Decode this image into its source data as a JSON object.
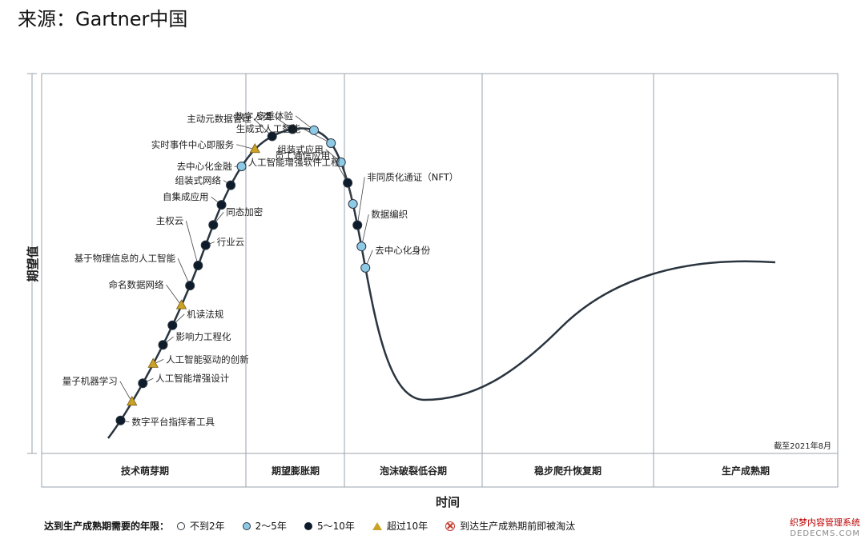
{
  "source": "来源：Gartner中国",
  "chart_data": {
    "type": "line",
    "title": "",
    "xlabel": "时间",
    "ylabel": "期望值",
    "date_note": "截至2021年8月",
    "phases": [
      "技术萌芽期",
      "期望膨胀期",
      "泡沫破裂低谷期",
      "稳步爬升恢复期",
      "生产成熟期"
    ],
    "legend_title": "达到生产成熟期需要的年限：",
    "legend": [
      {
        "key": "lt2",
        "label": "不到2年",
        "color": "#ffffff"
      },
      {
        "key": "2to5",
        "label": "2～5年",
        "color": "#8ecae6"
      },
      {
        "key": "5to10",
        "label": "5～10年",
        "color": "#0d1b2a"
      },
      {
        "key": "gt10",
        "label": "超过10年",
        "color": "#c9a227"
      },
      {
        "key": "obsolete",
        "label": "到达生产成熟期前即被淘汰",
        "color": "#c0392b"
      }
    ],
    "technologies": [
      {
        "name": "数字平台指挥者工具",
        "t": 0.02,
        "cat": "5to10"
      },
      {
        "name": "量子机器学习",
        "t": 0.04,
        "cat": "gt10"
      },
      {
        "name": "人工智能增强设计",
        "t": 0.06,
        "cat": "5to10"
      },
      {
        "name": "人工智能驱动的创新",
        "t": 0.08,
        "cat": "gt10"
      },
      {
        "name": "影响力工程化",
        "t": 0.1,
        "cat": "5to10"
      },
      {
        "name": "机读法规",
        "t": 0.12,
        "cat": "5to10"
      },
      {
        "name": "命名数据网络",
        "t": 0.14,
        "cat": "gt10"
      },
      {
        "name": "基于物理信息的人工智能",
        "t": 0.16,
        "cat": "5to10"
      },
      {
        "name": "主权云",
        "t": 0.18,
        "cat": "5to10"
      },
      {
        "name": "行业云",
        "t": 0.2,
        "cat": "5to10"
      },
      {
        "name": "同态加密",
        "t": 0.22,
        "cat": "5to10"
      },
      {
        "name": "自集成应用",
        "t": 0.24,
        "cat": "5to10"
      },
      {
        "name": "组装式网络",
        "t": 0.26,
        "cat": "5to10"
      },
      {
        "name": "去中心化金融",
        "t": 0.28,
        "cat": "2to5"
      },
      {
        "name": "实时事件中心即服务",
        "t": 0.3,
        "cat": "gt10"
      },
      {
        "name": "主动元数据管理",
        "t": 0.32,
        "cat": "5to10"
      },
      {
        "name": "数字人类",
        "t": 0.34,
        "cat": "5to10"
      },
      {
        "name": "多重体验",
        "t": 0.36,
        "cat": "2to5"
      },
      {
        "name": "生成式人工智能",
        "t": 0.38,
        "cat": "2to5"
      },
      {
        "name": "组装式应用",
        "t": 0.4,
        "cat": "2to5"
      },
      {
        "name": "员工通信应用",
        "t": 0.42,
        "cat": "5to10"
      },
      {
        "name": "人工智能增强软件工程",
        "t": 0.44,
        "cat": "2to5"
      },
      {
        "name": "非同质化通证（NFT）",
        "t": 0.46,
        "cat": "5to10"
      },
      {
        "name": "数据编织",
        "t": 0.48,
        "cat": "2to5"
      },
      {
        "name": "去中心化身份",
        "t": 0.5,
        "cat": "2to5"
      }
    ]
  },
  "watermark": {
    "line1": "织梦内容管理系统",
    "line2": "DEDECMS.COM"
  }
}
